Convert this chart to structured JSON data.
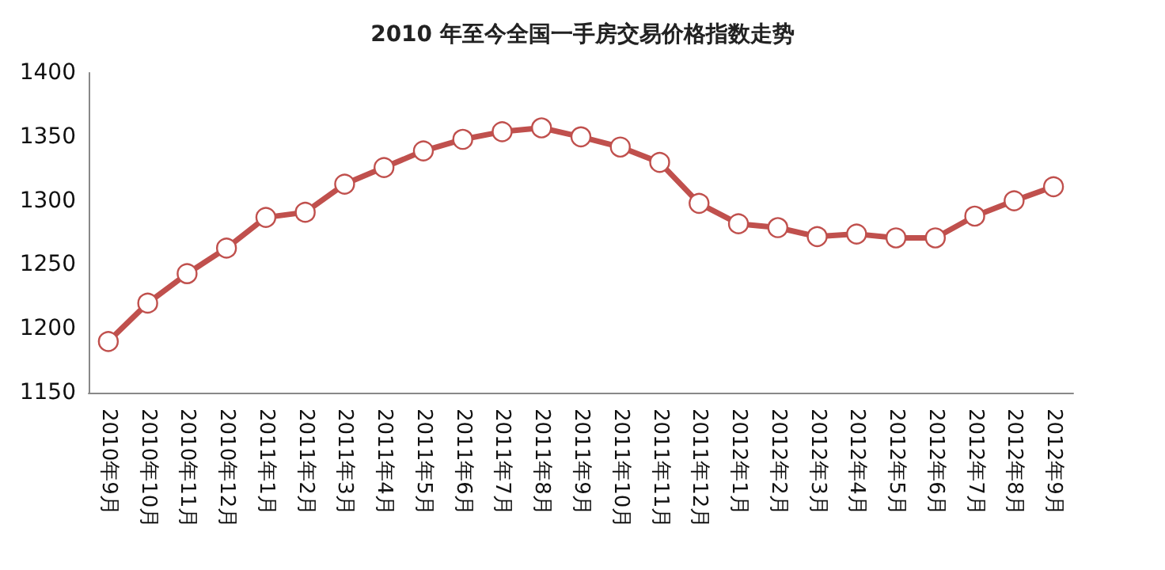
{
  "chart_data": {
    "type": "line",
    "title": "2010 年至今全国一手房交易价格指数走势",
    "categories": [
      "2010年9月",
      "2010年10月",
      "2010年11月",
      "2010年12月",
      "2011年1月",
      "2011年2月",
      "2011年3月",
      "2011年4月",
      "2011年5月",
      "2011年6月",
      "2011年7月",
      "2011年8月",
      "2011年9月",
      "2011年10月",
      "2011年11月",
      "2011年12月",
      "2012年1月",
      "2012年2月",
      "2012年3月",
      "2012年4月",
      "2012年5月",
      "2012年6月",
      "2012年7月",
      "2012年8月",
      "2012年9月"
    ],
    "series": [
      {
        "color": "#c0504d",
        "values": [
          1190,
          1220,
          1243,
          1263,
          1287,
          1291,
          1313,
          1326,
          1339,
          1348,
          1354,
          1357,
          1350,
          1342,
          1330,
          1298,
          1282,
          1279,
          1272,
          1274,
          1271,
          1271,
          1288,
          1300,
          1311
        ]
      }
    ],
    "ylim": [
      1150,
      1400
    ],
    "yticks": [
      1150,
      1200,
      1250,
      1300,
      1350,
      1400
    ],
    "grid": false,
    "marker": "circle",
    "line_style": "solid"
  }
}
